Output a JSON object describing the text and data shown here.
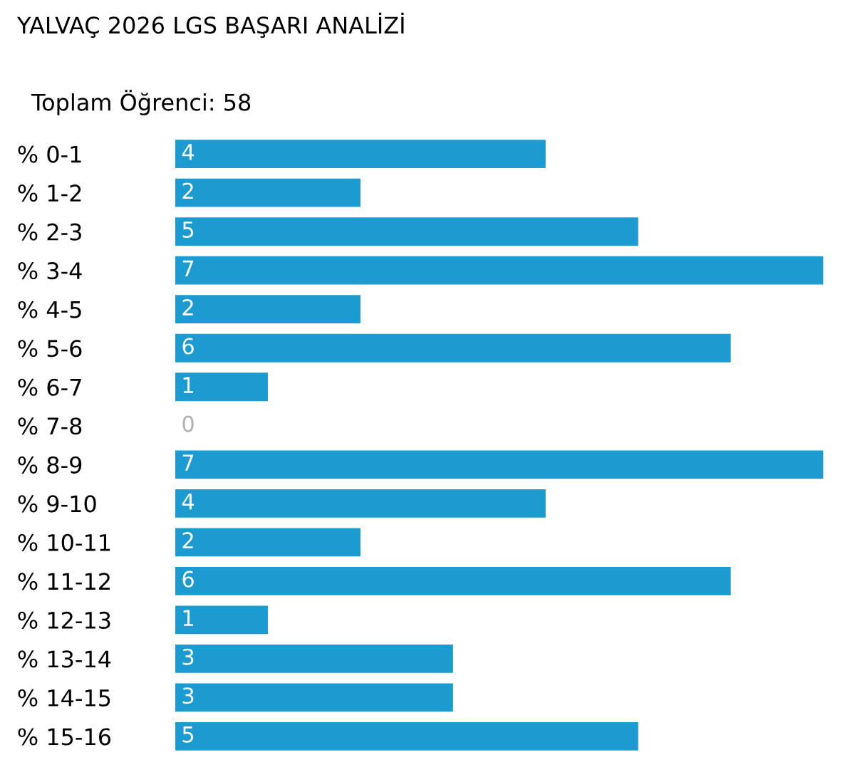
{
  "chart_data": {
    "type": "bar",
    "orientation": "horizontal",
    "title": "YALVAÇ 2026 LGS BAŞARI ANALİZİ",
    "subtitle": "Toplam Öğrenci: 58",
    "categories": [
      "% 0-1",
      "% 1-2",
      "% 2-3",
      "% 3-4",
      "% 4-5",
      "% 5-6",
      "% 6-7",
      "% 7-8",
      "% 8-9",
      "% 9-10",
      "% 10-11",
      "% 11-12",
      "% 12-13",
      "% 13-14",
      "% 14-15",
      "% 15-16"
    ],
    "values": [
      4,
      2,
      5,
      7,
      2,
      6,
      1,
      0,
      7,
      4,
      2,
      6,
      1,
      3,
      3,
      5
    ],
    "color": "#1b9bd0",
    "data_labels": true,
    "grid": false,
    "legend": false
  }
}
